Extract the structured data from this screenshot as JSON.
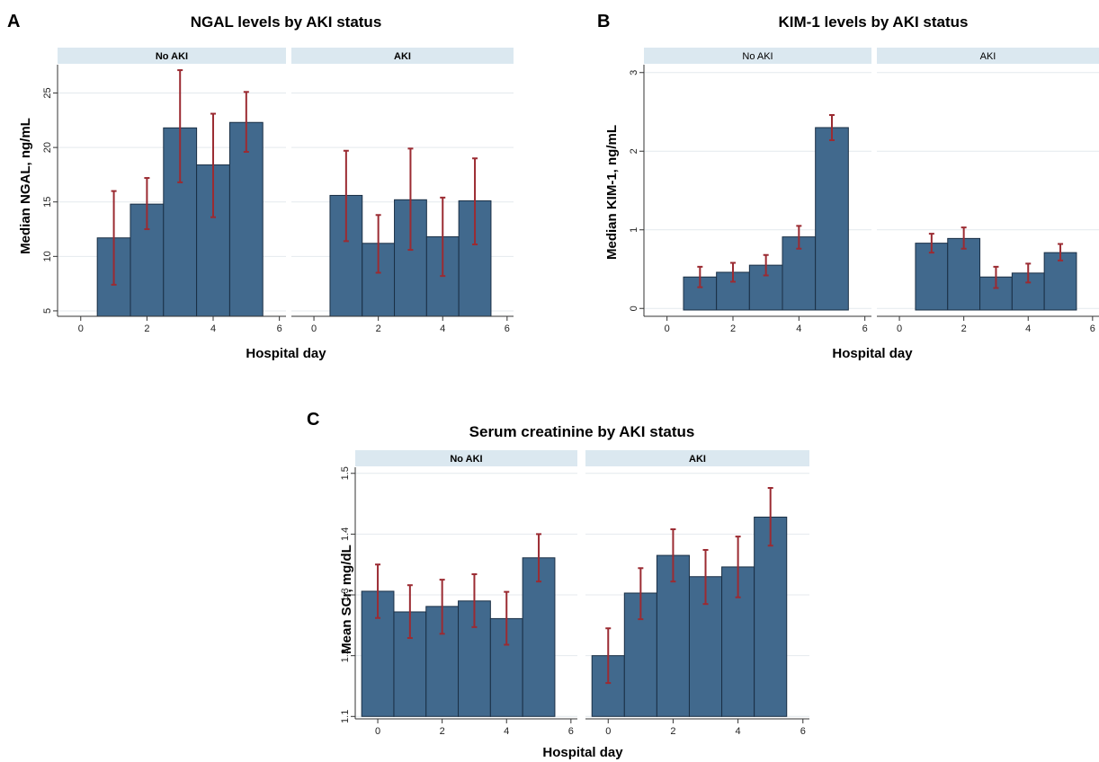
{
  "colors": {
    "bar_fill": "#41698d",
    "bar_stroke": "#1a2f45",
    "error_bar": "#9b2b32",
    "strip_bg": "#dbe8f0",
    "grid": "#e4e9ee",
    "axis": "#333333"
  },
  "chart_data": [
    {
      "type": "bar",
      "panel_letter": "A",
      "title": "NGAL levels by AKI status",
      "xlabel": "Hospital day",
      "ylabel": "Median NGAL, ng/mL",
      "ylim": [
        4.5,
        27.6
      ],
      "xlim": [
        -0.7,
        6.2
      ],
      "yticks": [
        5,
        10,
        15,
        20,
        25
      ],
      "xticks": [
        0,
        2,
        4,
        6
      ],
      "bar_base": 4.5,
      "strip_bold": true,
      "grid": true,
      "facets": [
        {
          "name": "No AKI",
          "x": [
            1,
            2,
            3,
            4,
            5
          ],
          "values": [
            11.7,
            14.8,
            21.8,
            18.4,
            22.3
          ],
          "err_low": [
            7.4,
            12.5,
            16.8,
            13.6,
            19.6
          ],
          "err_high": [
            16.0,
            17.2,
            27.1,
            23.1,
            25.1
          ]
        },
        {
          "name": "AKI",
          "x": [
            1,
            2,
            3,
            4,
            5
          ],
          "values": [
            15.6,
            11.2,
            15.2,
            11.8,
            15.1
          ],
          "err_low": [
            11.4,
            8.5,
            10.6,
            8.2,
            11.1
          ],
          "err_high": [
            19.7,
            13.8,
            19.9,
            15.4,
            19.0
          ]
        }
      ]
    },
    {
      "type": "bar",
      "panel_letter": "B",
      "title": "KIM-1 levels by AKI status",
      "xlabel": "Hospital day",
      "ylabel": "Median KIM-1, ng/mL",
      "ylim": [
        -0.1,
        3.1
      ],
      "xlim": [
        -0.7,
        6.2
      ],
      "yticks": [
        0,
        1,
        2,
        3
      ],
      "xticks": [
        0,
        2,
        4,
        6
      ],
      "bar_base": -0.02,
      "strip_bold": false,
      "grid": true,
      "facets": [
        {
          "name": "No AKI",
          "x": [
            1,
            2,
            3,
            4,
            5
          ],
          "values": [
            0.4,
            0.46,
            0.55,
            0.91,
            2.3
          ],
          "err_low": [
            0.27,
            0.34,
            0.42,
            0.76,
            2.14
          ],
          "err_high": [
            0.53,
            0.58,
            0.68,
            1.05,
            2.46
          ]
        },
        {
          "name": "AKI",
          "x": [
            1,
            2,
            3,
            4,
            5
          ],
          "values": [
            0.83,
            0.89,
            0.4,
            0.45,
            0.71
          ],
          "err_low": [
            0.71,
            0.76,
            0.26,
            0.33,
            0.61
          ],
          "err_high": [
            0.95,
            1.03,
            0.53,
            0.57,
            0.82
          ]
        }
      ]
    },
    {
      "type": "bar",
      "panel_letter": "C",
      "title": "Serum creatinine by AKI status",
      "xlabel": "Hospital day",
      "ylabel": "Mean SCr, mg/dL",
      "ylim": [
        1.096,
        1.51
      ],
      "xlim": [
        -0.7,
        6.2
      ],
      "yticks": [
        1.1,
        1.2,
        1.3,
        1.4,
        1.5
      ],
      "xticks": [
        0,
        2,
        4,
        6
      ],
      "bar_base": 1.1,
      "strip_bold": true,
      "grid": true,
      "facets": [
        {
          "name": "No AKI",
          "x": [
            0,
            1,
            2,
            3,
            4,
            5
          ],
          "values": [
            1.306,
            1.272,
            1.281,
            1.29,
            1.261,
            1.361
          ],
          "err_low": [
            1.262,
            1.229,
            1.236,
            1.247,
            1.218,
            1.322
          ],
          "err_high": [
            1.35,
            1.316,
            1.325,
            1.334,
            1.305,
            1.4
          ]
        },
        {
          "name": "AKI",
          "x": [
            0,
            1,
            2,
            3,
            4,
            5
          ],
          "values": [
            1.2,
            1.303,
            1.365,
            1.33,
            1.346,
            1.428
          ],
          "err_low": [
            1.155,
            1.26,
            1.322,
            1.285,
            1.296,
            1.381
          ],
          "err_high": [
            1.245,
            1.344,
            1.408,
            1.374,
            1.396,
            1.476
          ]
        }
      ]
    }
  ]
}
